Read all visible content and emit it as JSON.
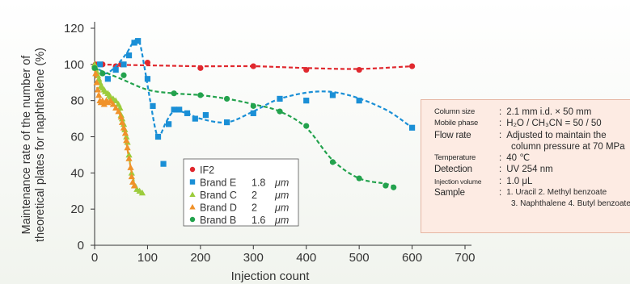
{
  "chart_data": {
    "type": "scatter",
    "ylabel_lines": [
      "Maintenance rate of the number of",
      "theoretical plates for naphthalene (%)"
    ],
    "xlabel": "Injection count",
    "xlim": [
      0,
      700
    ],
    "ylim": [
      0,
      120
    ],
    "xticks": [
      "0",
      "100",
      "200",
      "300",
      "400",
      "500",
      "600",
      "700"
    ],
    "yticks": [
      "0",
      "20",
      "40",
      "60",
      "80",
      "100",
      "120"
    ],
    "legend_position": "lower-middle",
    "series": [
      {
        "name": "IF2",
        "unit": "",
        "color": "#e0282e",
        "marker": "circle",
        "x": [
          2,
          15,
          40,
          50,
          100,
          200,
          300,
          400,
          500,
          600
        ],
        "y": [
          100,
          100,
          99,
          100,
          101,
          98,
          99,
          97,
          97,
          99
        ],
        "trend": [
          [
            0,
            100
          ],
          [
            100,
            99.5
          ],
          [
            200,
            99
          ],
          [
            300,
            99
          ],
          [
            400,
            98
          ],
          [
            500,
            97.5
          ],
          [
            600,
            99
          ]
        ]
      },
      {
        "name": "Brand E",
        "size": "1.8",
        "unit": "μm",
        "color": "#1a8fd6",
        "marker": "square",
        "x": [
          10,
          25,
          40,
          55,
          65,
          75,
          82,
          100,
          110,
          120,
          130,
          140,
          150,
          160,
          175,
          190,
          210,
          250,
          300,
          350,
          400,
          450,
          500,
          600
        ],
        "y": [
          100,
          92,
          97,
          100,
          105,
          112,
          113,
          92,
          77,
          60,
          45,
          67,
          75,
          75,
          73,
          70,
          72,
          68,
          73,
          81,
          80,
          83,
          80,
          65
        ],
        "trend": [
          [
            0,
            100
          ],
          [
            20,
            95
          ],
          [
            40,
            99
          ],
          [
            60,
            106
          ],
          [
            75,
            113
          ],
          [
            85,
            112
          ],
          [
            95,
            97
          ],
          [
            105,
            80
          ],
          [
            115,
            64
          ],
          [
            122,
            60
          ],
          [
            135,
            68
          ],
          [
            150,
            74
          ],
          [
            175,
            73
          ],
          [
            200,
            70
          ],
          [
            250,
            68
          ],
          [
            300,
            74
          ],
          [
            350,
            81
          ],
          [
            420,
            85
          ],
          [
            480,
            83
          ],
          [
            550,
            75
          ],
          [
            600,
            65
          ]
        ]
      },
      {
        "name": "Brand C",
        "size": "2",
        "unit": "μm",
        "color": "#9ccc3c",
        "marker": "triangle",
        "x": [
          0,
          2,
          4,
          6,
          8,
          10,
          12,
          15,
          18,
          20,
          25,
          28,
          30,
          35,
          40,
          45,
          48,
          50,
          52,
          55,
          57,
          60,
          62,
          65,
          70,
          75,
          80,
          85,
          90
        ],
        "y": [
          100,
          98,
          96,
          94,
          92,
          90,
          88,
          87,
          86,
          85,
          84,
          83,
          82,
          81,
          80,
          78,
          76,
          72,
          70,
          67,
          64,
          60,
          57,
          50,
          40,
          33,
          31,
          30,
          29
        ],
        "trend": [
          [
            0,
            100
          ],
          [
            10,
            90
          ],
          [
            20,
            85
          ],
          [
            40,
            80
          ],
          [
            50,
            72
          ],
          [
            60,
            60
          ],
          [
            70,
            40
          ],
          [
            80,
            32
          ],
          [
            90,
            29
          ]
        ]
      },
      {
        "name": "Brand D",
        "size": "2",
        "unit": "μm",
        "color": "#f0922a",
        "marker": "triangle",
        "x": [
          2,
          4,
          6,
          8,
          10,
          12,
          15,
          18,
          22,
          25,
          30,
          35,
          40,
          45,
          50,
          52,
          55,
          58,
          60,
          62,
          65,
          68,
          70,
          72,
          75
        ],
        "y": [
          95,
          90,
          86,
          83,
          80,
          79,
          80,
          78,
          80,
          79,
          80,
          78,
          76,
          74,
          71,
          68,
          65,
          62,
          58,
          54,
          48,
          43,
          38,
          35,
          33
        ],
        "trend": [
          [
            0,
            98
          ],
          [
            10,
            80
          ],
          [
            30,
            79
          ],
          [
            45,
            74
          ],
          [
            55,
            65
          ],
          [
            65,
            48
          ],
          [
            75,
            33
          ]
        ]
      },
      {
        "name": "Brand B",
        "size": "1.6",
        "unit": "μm",
        "color": "#23a24d",
        "marker": "circle",
        "x": [
          0,
          15,
          55,
          150,
          200,
          250,
          300,
          350,
          400,
          450,
          500,
          550,
          565
        ],
        "y": [
          98,
          95,
          94,
          84,
          83,
          81,
          77,
          74,
          66,
          46,
          37,
          33,
          32
        ],
        "trend": [
          [
            0,
            98
          ],
          [
            50,
            92
          ],
          [
            100,
            86
          ],
          [
            150,
            84
          ],
          [
            200,
            83
          ],
          [
            250,
            81
          ],
          [
            300,
            78
          ],
          [
            350,
            74
          ],
          [
            400,
            65
          ],
          [
            450,
            47
          ],
          [
            500,
            37
          ],
          [
            550,
            34
          ],
          [
            570,
            32
          ]
        ]
      }
    ],
    "conditions": [
      {
        "key": "Column size",
        "sep": ":",
        "value": "2.1 mm i.d. × 50 mm"
      },
      {
        "key": "Mobile phase",
        "sep": ":",
        "value": "H₂O / CH₃CN = 50 / 50"
      },
      {
        "key": "Flow rate",
        "sep": ":",
        "value": "Adjusted to maintain the",
        "cont": "column pressure at 70 MPa"
      },
      {
        "key": "Temperature",
        "sep": ":",
        "value": "40 ℃"
      },
      {
        "key": "Detection",
        "sep": ":",
        "value": "UV 254 nm"
      },
      {
        "key": "Injection volume",
        "sep": ":",
        "value": "1.0 μL"
      },
      {
        "key": "Sample",
        "sep": ":",
        "value": "1. Uracil 2. Methyl benzoate",
        "cont": "3. Naphthalene 4. Butyl benzoate"
      }
    ]
  }
}
